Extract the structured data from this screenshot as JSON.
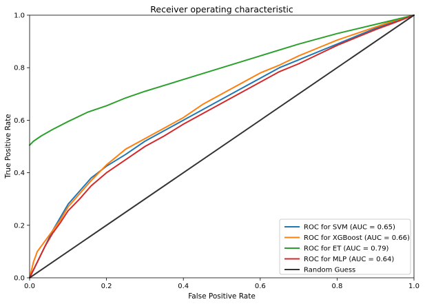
{
  "chart_data": {
    "type": "line",
    "title": "Receiver operating characteristic",
    "xlabel": "False Positive Rate",
    "ylabel": "True Positive Rate",
    "xlim": [
      0,
      1
    ],
    "ylim": [
      0,
      1
    ],
    "xticks": [
      "0.0",
      "0.2",
      "0.4",
      "0.6",
      "0.8",
      "1.0"
    ],
    "yticks": [
      "0.0",
      "0.2",
      "0.4",
      "0.6",
      "0.8",
      "1.0"
    ],
    "grid": false,
    "legend_position": "lower-right",
    "series": [
      {
        "name": "ROC for SVM (AUC = 0.65)",
        "color": "#1f77b4",
        "x": [
          0,
          0.02,
          0.04,
          0.06,
          0.08,
          0.1,
          0.13,
          0.16,
          0.2,
          0.25,
          0.3,
          0.35,
          0.4,
          0.45,
          0.5,
          0.55,
          0.6,
          0.65,
          0.7,
          0.75,
          0.8,
          0.85,
          0.9,
          0.95,
          1.0
        ],
        "y": [
          0,
          0.06,
          0.12,
          0.18,
          0.23,
          0.28,
          0.33,
          0.38,
          0.425,
          0.47,
          0.52,
          0.56,
          0.6,
          0.64,
          0.68,
          0.72,
          0.76,
          0.8,
          0.83,
          0.86,
          0.89,
          0.92,
          0.95,
          0.975,
          1.0
        ]
      },
      {
        "name": "ROC for XGBoost (AUC = 0.66)",
        "color": "#ff7f0e",
        "x": [
          0,
          0.01,
          0.02,
          0.04,
          0.06,
          0.08,
          0.1,
          0.13,
          0.16,
          0.2,
          0.25,
          0.3,
          0.35,
          0.4,
          0.45,
          0.5,
          0.55,
          0.6,
          0.65,
          0.7,
          0.75,
          0.8,
          0.85,
          0.9,
          0.95,
          1.0
        ],
        "y": [
          0,
          0.06,
          0.1,
          0.14,
          0.18,
          0.22,
          0.27,
          0.32,
          0.37,
          0.43,
          0.49,
          0.53,
          0.57,
          0.61,
          0.66,
          0.7,
          0.74,
          0.78,
          0.81,
          0.845,
          0.875,
          0.905,
          0.93,
          0.955,
          0.98,
          1.0
        ]
      },
      {
        "name": "ROC for ET (AUC = 0.79)",
        "color": "#2ca02c",
        "x": [
          0,
          0.01,
          0.03,
          0.06,
          0.1,
          0.15,
          0.2,
          0.25,
          0.3,
          0.4,
          0.5,
          0.6,
          0.7,
          0.8,
          0.9,
          1.0
        ],
        "y": [
          0.505,
          0.52,
          0.54,
          0.565,
          0.595,
          0.63,
          0.655,
          0.685,
          0.71,
          0.755,
          0.8,
          0.845,
          0.89,
          0.93,
          0.965,
          1.0
        ]
      },
      {
        "name": "ROC for MLP (AUC = 0.64)",
        "color": "#d62728",
        "x": [
          0,
          0.02,
          0.04,
          0.06,
          0.08,
          0.1,
          0.13,
          0.16,
          0.2,
          0.25,
          0.3,
          0.35,
          0.4,
          0.45,
          0.5,
          0.55,
          0.6,
          0.65,
          0.7,
          0.75,
          0.8,
          0.85,
          0.9,
          0.95,
          1.0
        ],
        "y": [
          0,
          0.06,
          0.12,
          0.17,
          0.21,
          0.255,
          0.3,
          0.35,
          0.4,
          0.45,
          0.5,
          0.54,
          0.585,
          0.625,
          0.665,
          0.705,
          0.745,
          0.785,
          0.815,
          0.85,
          0.885,
          0.915,
          0.945,
          0.972,
          1.0
        ]
      },
      {
        "name": "Random Guess",
        "color": "#333333",
        "x": [
          0,
          1
        ],
        "y": [
          0,
          1
        ]
      }
    ]
  }
}
